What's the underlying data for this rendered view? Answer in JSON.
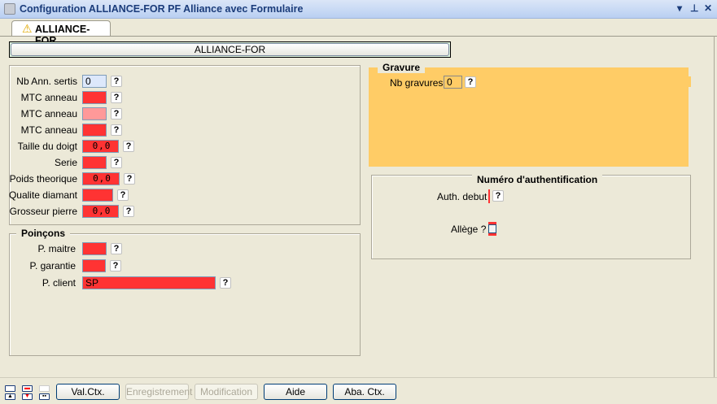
{
  "window": {
    "title": "Configuration ALLIANCE-FOR PF Alliance avec Formulaire",
    "controls": [
      "▾",
      "⊥",
      "✕"
    ]
  },
  "tab": {
    "label": "ALLIANCE-FOR",
    "icon": "warning-icon"
  },
  "header_button": "ALLIANCE-FOR",
  "fields": [
    {
      "label": "Nb Ann. sertis",
      "value": "0",
      "color": "#dde8fb"
    },
    {
      "label": "MTC anneau",
      "value": "",
      "color": "#ff3333"
    },
    {
      "label": "MTC anneau",
      "value": "",
      "color": "#ff9999"
    },
    {
      "label": "MTC anneau",
      "value": "",
      "color": "#ff3333"
    },
    {
      "label": "Taille du doigt",
      "value": "0,0",
      "color": "#ff3333"
    },
    {
      "label": "Serie",
      "value": "",
      "color": "#ff3333"
    },
    {
      "label": "Poids theorique",
      "value": "0,0",
      "color": "#ff3333"
    },
    {
      "label": "Qualite diamant",
      "value": "",
      "color": "#ff3333"
    },
    {
      "label": "Grosseur pierre",
      "value": "0,0",
      "color": "#ff3333"
    }
  ],
  "poincons": {
    "title": "Poinçons",
    "fields": [
      {
        "label": "P. maitre",
        "value": ""
      },
      {
        "label": "P. garantie",
        "value": ""
      },
      {
        "label": "P. client",
        "value": "SP"
      }
    ]
  },
  "gravure": {
    "title": "Gravure",
    "label": "Nb gravures",
    "value": "0",
    "color": "#ffcc66"
  },
  "auth": {
    "title": "Numéro d'authentification",
    "debut_label": "Auth. debut",
    "allege_label": "Allège ?",
    "allege_checked": false
  },
  "help": "?",
  "buttons": [
    {
      "label": "Val.Ctx.",
      "enabled": true
    },
    {
      "label": "Enregistrement",
      "enabled": false
    },
    {
      "label": "Modification",
      "enabled": false
    },
    {
      "label": "Aide",
      "enabled": true
    },
    {
      "label": "Aba. Ctx.",
      "enabled": true
    }
  ]
}
